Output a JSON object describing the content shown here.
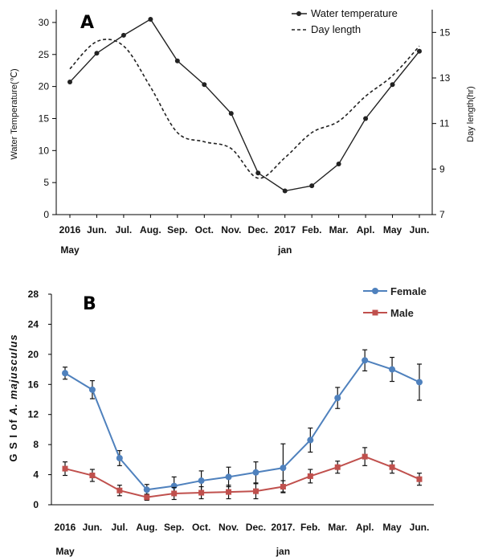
{
  "chart_data": [
    {
      "type": "line",
      "panel_label": "A",
      "categories": [
        "2016 May",
        "Jun.",
        "Jul.",
        "Aug.",
        "Sep.",
        "Oct.",
        "Nov.",
        "Dec.",
        "2017 jan",
        "Feb.",
        "Mar.",
        "Apl.",
        "May",
        "Jun."
      ],
      "tick_labels": [
        "2016",
        "Jun.",
        "Jul.",
        "Aug.",
        "Sep.",
        "Oct.",
        "Nov.",
        "Dec.",
        "2017",
        "Feb.",
        "Mar.",
        "Apl.",
        "May",
        "Jun."
      ],
      "tick_sublabels": {
        "0": "May",
        "8": "jan"
      },
      "ylabel": "Water Temperature(℃)",
      "y2label": "Day length(hr)",
      "ylim": [
        0,
        32
      ],
      "yticks": [
        0,
        5,
        10,
        15,
        20,
        25,
        30
      ],
      "y2lim": [
        7,
        16
      ],
      "y2ticks": [
        7,
        9,
        11,
        13,
        15
      ],
      "legend_position": "top-right",
      "series": [
        {
          "name": "Water temperature",
          "axis": "left",
          "style": "solid-marker",
          "values": [
            20.7,
            25.2,
            28.0,
            30.5,
            24.0,
            20.3,
            15.8,
            6.5,
            3.7,
            4.5,
            7.9,
            15.0,
            20.3,
            25.5
          ]
        },
        {
          "name": "Day length",
          "axis": "right",
          "style": "dashed",
          "values": [
            13.4,
            14.6,
            14.4,
            12.6,
            10.6,
            10.2,
            9.9,
            8.6,
            9.5,
            10.6,
            11.1,
            12.2,
            13.1,
            14.4
          ]
        }
      ]
    },
    {
      "type": "line",
      "panel_label": "B",
      "categories": [
        "2016 May",
        "Jun.",
        "Jul.",
        "Aug.",
        "Sep.",
        "Oct.",
        "Nov.",
        "Dec.",
        "2017 jan",
        "Feb.",
        "Mar.",
        "Apl.",
        "May",
        "Jun."
      ],
      "tick_labels": [
        "2016",
        "Jun.",
        "Jul.",
        "Aug.",
        "Sep.",
        "Oct.",
        "Nov.",
        "Dec.",
        "2017.",
        "Feb.",
        "Mar.",
        "Apl.",
        "May",
        "Jun."
      ],
      "tick_sublabels": {
        "0": "May",
        "8": "jan"
      },
      "ylabel_prefix": "G S I of ",
      "ylabel_species": "A. majusculus",
      "ylim": [
        0,
        28
      ],
      "yticks": [
        0,
        4,
        8,
        12,
        16,
        20,
        24,
        28
      ],
      "legend_position": "top-right",
      "series": [
        {
          "name": "Female",
          "color": "#4f81bd",
          "values": [
            17.5,
            15.3,
            6.2,
            2.0,
            2.5,
            3.2,
            3.7,
            4.3,
            4.9,
            8.6,
            14.2,
            19.2,
            18.0,
            16.3
          ],
          "errors": [
            0.8,
            1.2,
            1.0,
            0.7,
            1.2,
            1.3,
            1.3,
            1.4,
            3.2,
            1.6,
            1.4,
            1.4,
            1.6,
            2.4
          ]
        },
        {
          "name": "Male",
          "color": "#c0504d",
          "values": [
            4.8,
            3.9,
            1.9,
            1.0,
            1.5,
            1.6,
            1.7,
            1.8,
            2.4,
            3.8,
            5.0,
            6.4,
            5.0,
            3.4
          ],
          "errors": [
            0.9,
            0.8,
            0.7,
            0.4,
            0.8,
            0.8,
            0.9,
            1.0,
            0.8,
            0.9,
            0.8,
            1.2,
            0.8,
            0.8
          ]
        }
      ]
    }
  ]
}
